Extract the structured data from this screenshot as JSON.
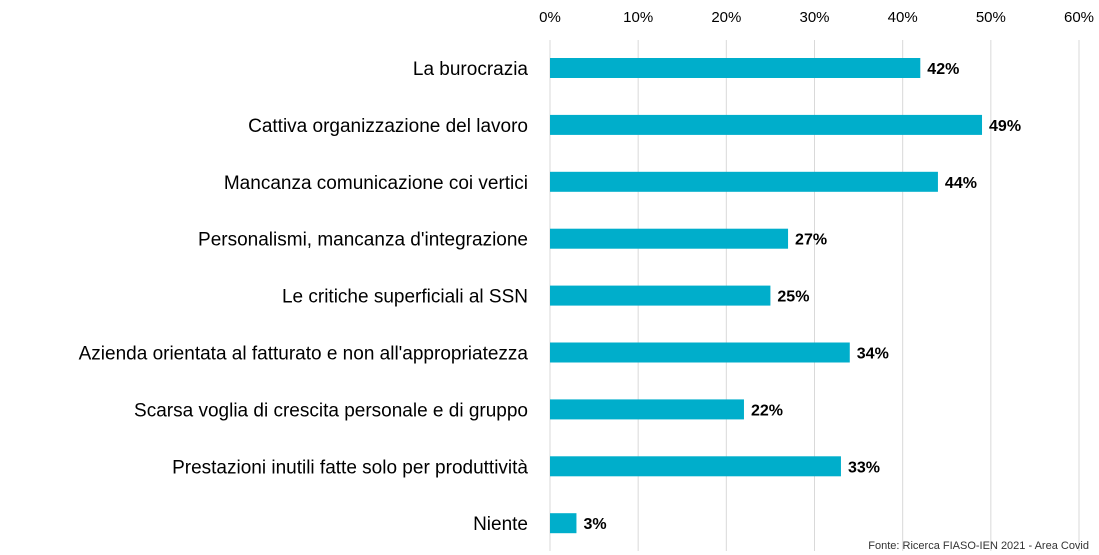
{
  "chart_data": {
    "type": "bar",
    "orientation": "horizontal",
    "title": "",
    "xlabel": "",
    "ylabel": "",
    "categories": [
      "La burocrazia",
      "Cattiva organizzazione del lavoro",
      "Mancanza comunicazione coi vertici",
      "Personalismi, mancanza d'integrazione",
      "Le critiche superficiali al SSN",
      "Azienda orientata al fatturato e non all'appropriatezza",
      "Scarsa voglia di crescita personale e di gruppo",
      "Prestazioni inutili fatte solo per produttività",
      "Niente"
    ],
    "values": [
      42,
      49,
      44,
      27,
      25,
      34,
      22,
      33,
      3
    ],
    "value_labels": [
      "42%",
      "49%",
      "44%",
      "27%",
      "25%",
      "34%",
      "22%",
      "33%",
      "3%"
    ],
    "xlim": [
      0,
      60
    ],
    "x_ticks": [
      0,
      10,
      20,
      30,
      40,
      50,
      60
    ],
    "x_tick_labels": [
      "0%",
      "10%",
      "20%",
      "30%",
      "40%",
      "50%",
      "60%"
    ],
    "x_axis_position": "top",
    "grid": true,
    "legend": "none",
    "bar_color": "#00AECB",
    "grid_color": "#d9d9d9"
  },
  "source_note": "Fonte: Ricerca FIASO-IEN 2021 - Area Covid"
}
